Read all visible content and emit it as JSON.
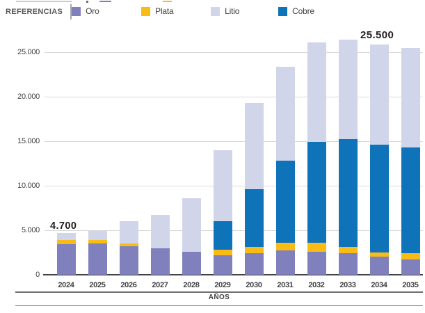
{
  "legend": {
    "title": "REFERENCIAS",
    "items": [
      {
        "key": "oro",
        "label": "Oro",
        "color": "#8081bc"
      },
      {
        "key": "plata",
        "label": "Plata",
        "color": "#f9bc16"
      },
      {
        "key": "litio",
        "label": "Litio",
        "color": "#d0d5e9"
      },
      {
        "key": "cobre",
        "label": "Cobre",
        "color": "#0e73b9"
      }
    ]
  },
  "chart_data": {
    "type": "bar",
    "stacked": true,
    "stack_order": "bottom_to_top",
    "categories": [
      "2024",
      "2025",
      "2026",
      "2027",
      "2028",
      "2029",
      "2030",
      "2031",
      "2032",
      "2033",
      "2034",
      "2035"
    ],
    "series": [
      {
        "key": "oro",
        "name": "Oro",
        "color": "#8081bc",
        "values": [
          3400,
          3500,
          3200,
          3000,
          2600,
          2200,
          2400,
          2700,
          2600,
          2400,
          2000,
          1700
        ]
      },
      {
        "key": "plata",
        "name": "Plata",
        "color": "#f9bc16",
        "values": [
          500,
          400,
          300,
          0,
          0,
          600,
          700,
          900,
          1000,
          700,
          500,
          700
        ]
      },
      {
        "key": "cobre",
        "name": "Cobre",
        "color": "#0e73b9",
        "values": [
          0,
          0,
          0,
          0,
          0,
          3200,
          6500,
          9200,
          11300,
          12100,
          12100,
          11900
        ]
      },
      {
        "key": "litio",
        "name": "Litio",
        "color": "#d0d5e9",
        "values": [
          800,
          1000,
          2500,
          3700,
          6000,
          8000,
          9700,
          10600,
          11200,
          11200,
          11300,
          11200
        ]
      }
    ],
    "xlabel": "AÑOS",
    "ylabel": "",
    "yticks": [
      {
        "label": "0",
        "value": 0
      },
      {
        "label": "5.000",
        "value": 5000
      },
      {
        "label": "10.000",
        "value": 10000
      },
      {
        "label": "15.000",
        "value": 15000
      },
      {
        "label": "20.000",
        "value": 20000
      },
      {
        "label": "25.000",
        "value": 25000
      }
    ],
    "ylim": [
      0,
      26500
    ],
    "grid": "horizontal",
    "legend_position": "top",
    "annotations": [
      {
        "category": "2024",
        "text": "4.700"
      },
      {
        "category": "2035",
        "text": "25.500"
      }
    ]
  },
  "colors": {
    "axis_text": "#414042",
    "annotation_text": "#231f20",
    "gridline": "#d9d9d9",
    "baseline": "#414042",
    "rule": "#6d6e71"
  }
}
